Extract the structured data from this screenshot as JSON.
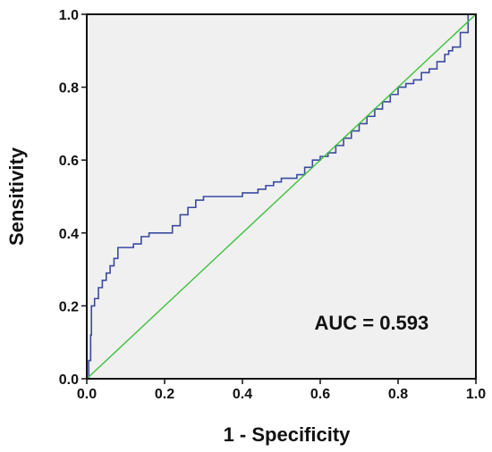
{
  "chart_data": {
    "type": "line",
    "xlabel": "1 - Specificity",
    "ylabel": "Sensitivity",
    "xlim": [
      0.0,
      1.0
    ],
    "ylim": [
      0.0,
      1.0
    ],
    "x_ticks": [
      "0.0",
      "0.2",
      "0.4",
      "0.6",
      "0.8",
      "1.0"
    ],
    "y_ticks": [
      "0.0",
      "0.2",
      "0.4",
      "0.6",
      "0.8",
      "1.0"
    ],
    "grid": false,
    "annotation": "AUC = 0.593",
    "series": [
      {
        "color": "#3b4aa0",
        "x": [
          0.0,
          0.005,
          0.01,
          0.012,
          0.02,
          0.03,
          0.04,
          0.05,
          0.06,
          0.07,
          0.08,
          0.1,
          0.12,
          0.14,
          0.16,
          0.18,
          0.2,
          0.22,
          0.24,
          0.26,
          0.28,
          0.3,
          0.32,
          0.35,
          0.38,
          0.4,
          0.42,
          0.44,
          0.46,
          0.48,
          0.5,
          0.52,
          0.54,
          0.56,
          0.58,
          0.6,
          0.62,
          0.64,
          0.66,
          0.68,
          0.7,
          0.72,
          0.74,
          0.76,
          0.78,
          0.8,
          0.82,
          0.84,
          0.86,
          0.88,
          0.9,
          0.92,
          0.93,
          0.94,
          0.96,
          0.98,
          1.0
        ],
        "y": [
          0.0,
          0.05,
          0.12,
          0.2,
          0.22,
          0.25,
          0.27,
          0.29,
          0.31,
          0.33,
          0.36,
          0.36,
          0.37,
          0.39,
          0.4,
          0.4,
          0.4,
          0.42,
          0.45,
          0.47,
          0.49,
          0.5,
          0.5,
          0.5,
          0.5,
          0.51,
          0.51,
          0.52,
          0.53,
          0.54,
          0.55,
          0.55,
          0.56,
          0.58,
          0.6,
          0.61,
          0.62,
          0.64,
          0.66,
          0.68,
          0.7,
          0.72,
          0.74,
          0.76,
          0.78,
          0.8,
          0.81,
          0.82,
          0.84,
          0.85,
          0.87,
          0.89,
          0.9,
          0.91,
          0.95,
          1.0,
          1.0
        ]
      },
      {
        "color": "#3cc13c",
        "x": [
          0.0,
          1.0
        ],
        "y": [
          0.0,
          1.0
        ]
      }
    ]
  }
}
